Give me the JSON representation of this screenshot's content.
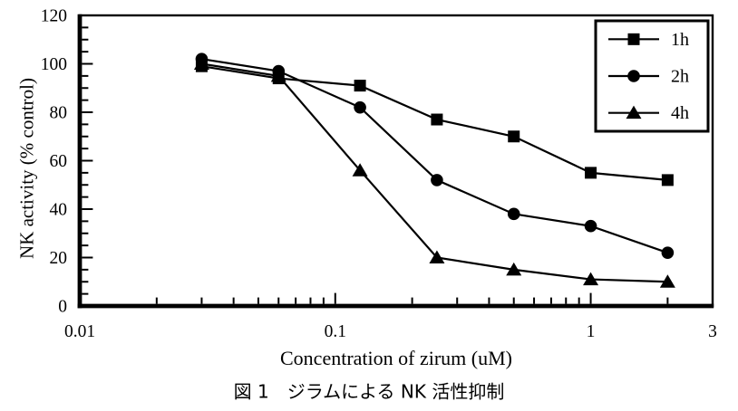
{
  "figure": {
    "caption": "図 1　ジラムによる NK 活性抑制"
  },
  "chart_data": {
    "type": "line",
    "title": "",
    "xlabel": "Concentration of zirum (uM)",
    "ylabel": "NK activity (% control)",
    "x_scale": "log",
    "y_scale": "linear",
    "xlim": [
      0.01,
      3
    ],
    "ylim": [
      0,
      120
    ],
    "x_major_ticks": [
      0.01,
      0.1,
      1,
      3
    ],
    "x_major_tick_labels": [
      "0.01",
      "0.1",
      "1",
      "3"
    ],
    "y_major_tick_step": 20,
    "y_minor_tick_step": 5,
    "grid": false,
    "legend_position": "top-right-inside",
    "color": "#000000",
    "background": "#ffffff",
    "x": [
      0.03,
      0.06,
      0.125,
      0.25,
      0.5,
      1,
      2
    ],
    "series": [
      {
        "name": "1h",
        "marker": "square",
        "values": [
          99,
          94,
          91,
          77,
          70,
          55,
          52
        ]
      },
      {
        "name": "2h",
        "marker": "circle",
        "values": [
          102,
          97,
          82,
          52,
          38,
          33,
          22
        ]
      },
      {
        "name": "4h",
        "marker": "triangle",
        "values": [
          100,
          95,
          56,
          20,
          15,
          11,
          10
        ]
      }
    ]
  }
}
